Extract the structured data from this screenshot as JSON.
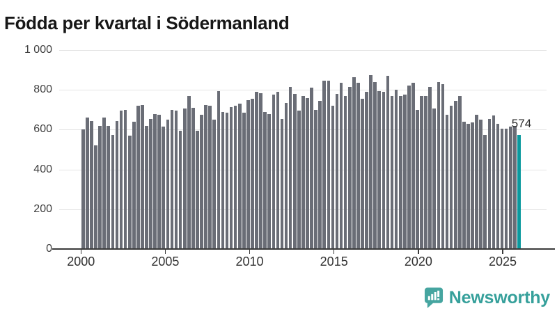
{
  "title": "Födda per kvartal i Södermanland",
  "colors": {
    "bar": "#6a6d76",
    "highlight": "#0a999e",
    "gridline": "#e4e4e4",
    "axis": "#3b3b3b",
    "tick_text": "#3f3f3f",
    "title_text": "#171717",
    "logo_teal": "#36a09b"
  },
  "chart_data": {
    "type": "bar",
    "title": "Födda per kvartal i Södermanland",
    "grid": true,
    "ylim": [
      0,
      1000
    ],
    "yticks": [
      0,
      200,
      400,
      600,
      800,
      1000
    ],
    "ytick_labels": [
      "0",
      "200",
      "400",
      "600",
      "800",
      "1 000"
    ],
    "xtick_years": [
      2000,
      2005,
      2010,
      2015,
      2020,
      2025
    ],
    "xtick_labels": [
      "2000",
      "2005",
      "2010",
      "2015",
      "2020",
      "2025"
    ],
    "highlight_index": 103,
    "last_value_label": "574",
    "categories": [
      "2000-Q1",
      "2000-Q2",
      "2000-Q3",
      "2000-Q4",
      "2001-Q1",
      "2001-Q2",
      "2001-Q3",
      "2001-Q4",
      "2002-Q1",
      "2002-Q2",
      "2002-Q3",
      "2002-Q4",
      "2003-Q1",
      "2003-Q2",
      "2003-Q3",
      "2003-Q4",
      "2004-Q1",
      "2004-Q2",
      "2004-Q3",
      "2004-Q4",
      "2005-Q1",
      "2005-Q2",
      "2005-Q3",
      "2005-Q4",
      "2006-Q1",
      "2006-Q2",
      "2006-Q3",
      "2006-Q4",
      "2007-Q1",
      "2007-Q2",
      "2007-Q3",
      "2007-Q4",
      "2008-Q1",
      "2008-Q2",
      "2008-Q3",
      "2008-Q4",
      "2009-Q1",
      "2009-Q2",
      "2009-Q3",
      "2009-Q4",
      "2010-Q1",
      "2010-Q2",
      "2010-Q3",
      "2010-Q4",
      "2011-Q1",
      "2011-Q2",
      "2011-Q3",
      "2011-Q4",
      "2012-Q1",
      "2012-Q2",
      "2012-Q3",
      "2012-Q4",
      "2013-Q1",
      "2013-Q2",
      "2013-Q3",
      "2013-Q4",
      "2014-Q1",
      "2014-Q2",
      "2014-Q3",
      "2014-Q4",
      "2015-Q1",
      "2015-Q2",
      "2015-Q3",
      "2015-Q4",
      "2016-Q1",
      "2016-Q2",
      "2016-Q3",
      "2016-Q4",
      "2017-Q1",
      "2017-Q2",
      "2017-Q3",
      "2017-Q4",
      "2018-Q1",
      "2018-Q2",
      "2018-Q3",
      "2018-Q4",
      "2019-Q1",
      "2019-Q2",
      "2019-Q3",
      "2019-Q4",
      "2020-Q1",
      "2020-Q2",
      "2020-Q3",
      "2020-Q4",
      "2021-Q1",
      "2021-Q2",
      "2021-Q3",
      "2021-Q4",
      "2022-Q1",
      "2022-Q2",
      "2022-Q3",
      "2022-Q4",
      "2023-Q1",
      "2023-Q2",
      "2023-Q3",
      "2023-Q4",
      "2024-Q1",
      "2024-Q2",
      "2024-Q3",
      "2024-Q4",
      "2025-Q1",
      "2025-Q2",
      "2025-Q3",
      "2025-Q4"
    ],
    "values": [
      600,
      660,
      645,
      520,
      620,
      660,
      620,
      575,
      645,
      695,
      700,
      570,
      640,
      720,
      725,
      620,
      655,
      680,
      675,
      615,
      650,
      700,
      695,
      595,
      705,
      770,
      710,
      595,
      675,
      725,
      720,
      650,
      795,
      690,
      685,
      715,
      720,
      730,
      685,
      750,
      755,
      790,
      785,
      690,
      680,
      775,
      790,
      655,
      735,
      815,
      780,
      695,
      770,
      760,
      810,
      700,
      745,
      845,
      845,
      720,
      780,
      835,
      770,
      815,
      865,
      835,
      755,
      790,
      875,
      840,
      795,
      790,
      870,
      770,
      800,
      770,
      775,
      820,
      835,
      700,
      770,
      770,
      815,
      705,
      840,
      830,
      675,
      720,
      745,
      770,
      640,
      630,
      635,
      675,
      650,
      575,
      655,
      670,
      630,
      605,
      605,
      615,
      620,
      574
    ]
  },
  "logo": {
    "text": "Newsworthy",
    "icon": "newsworthy-speech-bubble-chart-icon"
  }
}
